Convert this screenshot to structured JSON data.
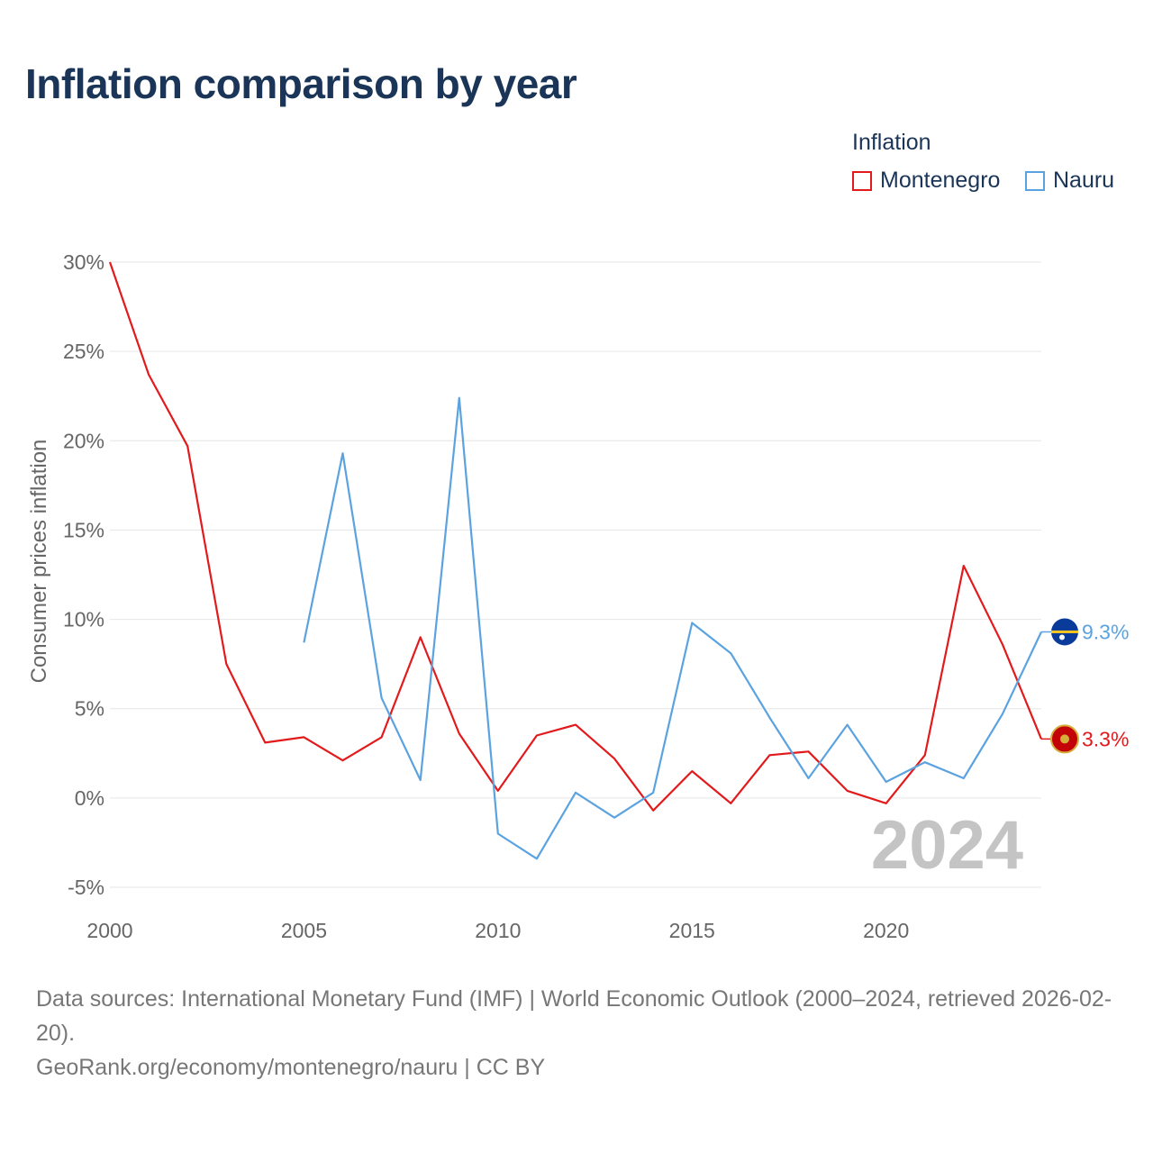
{
  "title": "Inflation comparison by year",
  "legend": {
    "title": "Inflation",
    "items": [
      {
        "label": "Montenegro",
        "color": "#e31a1c"
      },
      {
        "label": "Nauru",
        "color": "#5ba3e0"
      }
    ]
  },
  "year_watermark": "2024",
  "source": {
    "line1": "Data sources: International Monetary Fund (IMF) | World Economic Outlook (2000–2024, retrieved 2026-02-20).",
    "line2": "GeoRank.org/economy/montenegro/nauru | CC BY"
  },
  "chart_data": {
    "type": "line",
    "title": "Inflation comparison by year",
    "xlabel": "",
    "ylabel": "Consumer prices inflation",
    "xlim": [
      2000,
      2024
    ],
    "ylim": [
      -5,
      30
    ],
    "x_ticks": [
      2000,
      2005,
      2010,
      2015,
      2020
    ],
    "x_tick_labels": [
      "2000",
      "2005",
      "2010",
      "2015",
      "2020"
    ],
    "y_ticks": [
      -5,
      0,
      5,
      10,
      15,
      20,
      25,
      30
    ],
    "y_tick_labels": [
      "-5%",
      "0%",
      "5%",
      "10%",
      "15%",
      "20%",
      "25%",
      "30%"
    ],
    "grid": true,
    "legend_position": "top-right",
    "series": [
      {
        "name": "Montenegro",
        "color": "#e31a1c",
        "end_label": "3.3%",
        "flag": "montenegro-flag",
        "points": [
          {
            "x": 2000,
            "y": 30.0
          },
          {
            "x": 2001,
            "y": 23.7
          },
          {
            "x": 2002,
            "y": 19.7
          },
          {
            "x": 2003,
            "y": 7.5
          },
          {
            "x": 2004,
            "y": 3.1
          },
          {
            "x": 2005,
            "y": 3.4
          },
          {
            "x": 2006,
            "y": 2.1
          },
          {
            "x": 2007,
            "y": 3.4
          },
          {
            "x": 2008,
            "y": 9.0
          },
          {
            "x": 2009,
            "y": 3.6
          },
          {
            "x": 2010,
            "y": 0.4
          },
          {
            "x": 2011,
            "y": 3.5
          },
          {
            "x": 2012,
            "y": 4.1
          },
          {
            "x": 2013,
            "y": 2.2
          },
          {
            "x": 2014,
            "y": -0.7
          },
          {
            "x": 2015,
            "y": 1.5
          },
          {
            "x": 2016,
            "y": -0.3
          },
          {
            "x": 2017,
            "y": 2.4
          },
          {
            "x": 2018,
            "y": 2.6
          },
          {
            "x": 2019,
            "y": 0.4
          },
          {
            "x": 2020,
            "y": -0.3
          },
          {
            "x": 2021,
            "y": 2.4
          },
          {
            "x": 2022,
            "y": 13.0
          },
          {
            "x": 2023,
            "y": 8.6
          },
          {
            "x": 2024,
            "y": 3.3
          }
        ]
      },
      {
        "name": "Nauru",
        "color": "#5ba3e0",
        "end_label": "9.3%",
        "flag": "nauru-flag",
        "points": [
          {
            "x": 2005,
            "y": 8.7
          },
          {
            "x": 2006,
            "y": 19.3
          },
          {
            "x": 2007,
            "y": 5.6
          },
          {
            "x": 2008,
            "y": 1.0
          },
          {
            "x": 2009,
            "y": 22.4
          },
          {
            "x": 2010,
            "y": -2.0
          },
          {
            "x": 2011,
            "y": -3.4
          },
          {
            "x": 2012,
            "y": 0.3
          },
          {
            "x": 2013,
            "y": -1.1
          },
          {
            "x": 2014,
            "y": 0.3
          },
          {
            "x": 2015,
            "y": 9.8
          },
          {
            "x": 2016,
            "y": 8.1
          },
          {
            "x": 2017,
            "y": 4.5
          },
          {
            "x": 2018,
            "y": 1.1
          },
          {
            "x": 2019,
            "y": 4.1
          },
          {
            "x": 2020,
            "y": 0.9
          },
          {
            "x": 2021,
            "y": 2.0
          },
          {
            "x": 2022,
            "y": 1.1
          },
          {
            "x": 2023,
            "y": 4.7
          },
          {
            "x": 2024,
            "y": 9.3
          }
        ]
      }
    ]
  }
}
